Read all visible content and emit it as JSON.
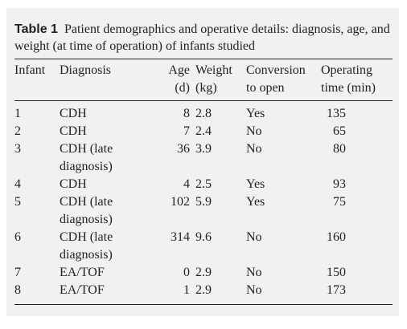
{
  "table_label": "Table 1",
  "caption": "Patient demographics and operative details: diagnosis, age, and weight (at time of operation) of infants studied",
  "table": {
    "header": [
      [
        "Infant"
      ],
      [
        "Diagnosis"
      ],
      [
        "Age",
        "(d)"
      ],
      [
        "Weight",
        "(kg)"
      ],
      [
        "Conversion",
        "to open"
      ],
      [
        "Operating",
        "time (min)"
      ]
    ],
    "rows": [
      [
        1,
        "CDH",
        8,
        2.8,
        "Yes",
        135
      ],
      [
        2,
        "CDH",
        7,
        2.4,
        "No",
        65
      ],
      [
        3,
        "CDH (late diagnosis)",
        36,
        3.9,
        "No",
        80
      ],
      [
        4,
        "CDH",
        4,
        2.5,
        "Yes",
        93
      ],
      [
        5,
        "CDH (late diagnosis)",
        102,
        5.9,
        "Yes",
        75
      ],
      [
        6,
        "CDH (late diagnosis)",
        314,
        9.6,
        "No",
        160
      ],
      [
        7,
        "EA/TOF",
        0,
        2.9,
        "No",
        150
      ],
      [
        8,
        "EA/TOF",
        1,
        2.9,
        "No",
        173
      ]
    ]
  }
}
